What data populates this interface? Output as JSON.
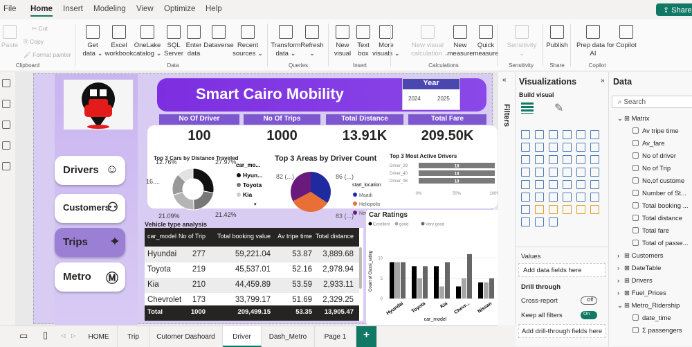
{
  "menu": {
    "items": [
      "File",
      "Home",
      "Insert",
      "Modeling",
      "View",
      "Optimize",
      "Help"
    ],
    "active": "Home",
    "share": "Share"
  },
  "ribbon": {
    "buttons": [
      {
        "label": "Paste",
        "disabled": true
      },
      {
        "label": "Get\ndata ⌄"
      },
      {
        "label": "Excel\nworkbook"
      },
      {
        "label": "OneLake\ncatalog ⌄"
      },
      {
        "label": "SQL\nServer"
      },
      {
        "label": "Enter\ndata"
      },
      {
        "label": "Dataverse"
      },
      {
        "label": "Recent\nsources ⌄"
      },
      {
        "label": "Transform\ndata ⌄"
      },
      {
        "label": "Refresh\n⌄"
      },
      {
        "label": "New\nvisual"
      },
      {
        "label": "Text\nbox"
      },
      {
        "label": "More\nvisuals ⌄"
      },
      {
        "label": "New visual\ncalculation ⌄",
        "disabled": true
      },
      {
        "label": "New\nmeasure"
      },
      {
        "label": "Quick\nmeasure"
      },
      {
        "label": "Sensitivity\n⌄",
        "disabled": true
      },
      {
        "label": "Publish"
      },
      {
        "label": "Prep data for\nAI"
      },
      {
        "label": "Copilot"
      }
    ],
    "small": [
      "Cut",
      "Copy",
      "Format painter"
    ],
    "groups": [
      "Clipboard",
      "Data",
      "Queries",
      "Insert",
      "Calculations",
      "Sensitivity",
      "Share",
      "Copilot"
    ]
  },
  "report": {
    "title": "Smart Cairo Mobility",
    "year_slicer": {
      "label": "Year",
      "options": [
        "2024",
        "2025"
      ]
    },
    "nav": [
      "Drivers",
      "Customers",
      "Trips",
      "Metro"
    ],
    "nav_selected": "Trips",
    "kpis": [
      {
        "label": "No Of Driver",
        "value": "100"
      },
      {
        "label": "No Of Trips",
        "value": "1000"
      },
      {
        "label": "Total Distance",
        "value": "13.91K"
      },
      {
        "label": "Total Fare",
        "value": "209.50K"
      }
    ]
  },
  "chart_data": [
    {
      "type": "pie",
      "variant": "donut",
      "title": "Top 3 Cars by Distance Traveled",
      "legend_title": "car_mo...",
      "legend": [
        "Hyun...",
        "Toyota",
        "Kia"
      ],
      "slice_labels": [
        "27.97%",
        "21.42%",
        "21.09%",
        "16....",
        "12.76%"
      ],
      "values": [
        27.97,
        21.42,
        21.09,
        16.76,
        12.76
      ],
      "colors": [
        "#111111",
        "#777777",
        "#b5b5b5",
        "#999999",
        "#e2e2e2"
      ]
    },
    {
      "type": "pie",
      "title": "Top 3 Areas by Driver Count",
      "legend_title": "start_location",
      "categories": [
        "Maadi",
        "Heliopolis",
        "New Cairo"
      ],
      "values": [
        86,
        83,
        82
      ],
      "labels": [
        "86 (...)",
        "83 (...)",
        "82 (...)"
      ],
      "colors": [
        "#1f2aa0",
        "#e86f35",
        "#6a1a7a"
      ]
    },
    {
      "type": "bar",
      "orientation": "horizontal",
      "title": "Top 3 Most Active Drivers",
      "categories": [
        "Driver_29",
        "Driver_40",
        "Driver_98"
      ],
      "values": [
        18,
        18,
        18
      ],
      "x_ticks": [
        "0%",
        "50%",
        "100%"
      ]
    },
    {
      "type": "bar",
      "title": "Car Ratings",
      "xlabel": "car_model",
      "ylabel": "Count of Classi_rating",
      "categories": [
        "Hyundai",
        "Toyota",
        "Kia",
        "Chevr...",
        "Nissan"
      ],
      "y_ticks": [
        "0",
        "5",
        "10"
      ],
      "ylim": [
        0,
        12
      ],
      "series": [
        {
          "name": "Excellent",
          "values": [
            9,
            8,
            8,
            3,
            4
          ],
          "color": "#000000"
        },
        {
          "name": "good",
          "values": [
            9,
            5,
            3,
            5,
            4
          ],
          "color": "#a6a6a6"
        },
        {
          "name": "Very good",
          "values": [
            9,
            8,
            9,
            11,
            5
          ],
          "color": "#666666"
        }
      ]
    },
    {
      "type": "table",
      "title": "Vehicle type analysis",
      "columns": [
        "car_model",
        "No of Trip",
        "Total booking value",
        "Av tripe time",
        "Total distance"
      ],
      "rows": [
        [
          "Hyundai",
          "277",
          "59,221.04",
          "53.87",
          "3,889.68"
        ],
        [
          "Toyota",
          "219",
          "45,537.01",
          "52.16",
          "2,978.94"
        ],
        [
          "Kia",
          "210",
          "44,459.89",
          "53.59",
          "2,933.11"
        ],
        [
          "Chevrolet",
          "173",
          "33,799.17",
          "51.69",
          "2,329.25"
        ]
      ],
      "total": [
        "Total",
        "1000",
        "209,499.15",
        "53.35",
        "13,905.47"
      ]
    }
  ],
  "filters": {
    "label": "Filters"
  },
  "visualizations": {
    "title": "Visualizations",
    "build": "Build visual",
    "values_label": "Values",
    "values_placeholder": "Add data fields here",
    "drill": "Drill through",
    "cross": "Cross-report",
    "cross_state": "Off",
    "keep": "Keep all filters",
    "keep_state": "On",
    "drill_placeholder": "Add drill-through fields here"
  },
  "data_pane": {
    "title": "Data",
    "search": "Search",
    "tree": [
      {
        "label": "Matrix",
        "expanded": true,
        "children": [
          "Av tripe time",
          "Av_fare",
          "No of driver",
          "No of Trip",
          "No,of custome",
          "Number of St...",
          "Total booking ...",
          "Total distance",
          "Total fare",
          "Total of passe..."
        ]
      },
      {
        "label": "Customers"
      },
      {
        "label": "DateTable"
      },
      {
        "label": "Drivers"
      },
      {
        "label": "Fuel_Prices"
      },
      {
        "label": "Metro_Ridership",
        "expanded": true,
        "children": [
          "date_time",
          "Σ passengers"
        ]
      }
    ]
  },
  "page_tabs": [
    "HOME",
    "Trip",
    "Cutomer Dashoard",
    "Driver",
    "Dash_Metro",
    "Page 1"
  ],
  "active_tab": "Driver",
  "add_tab": "+"
}
